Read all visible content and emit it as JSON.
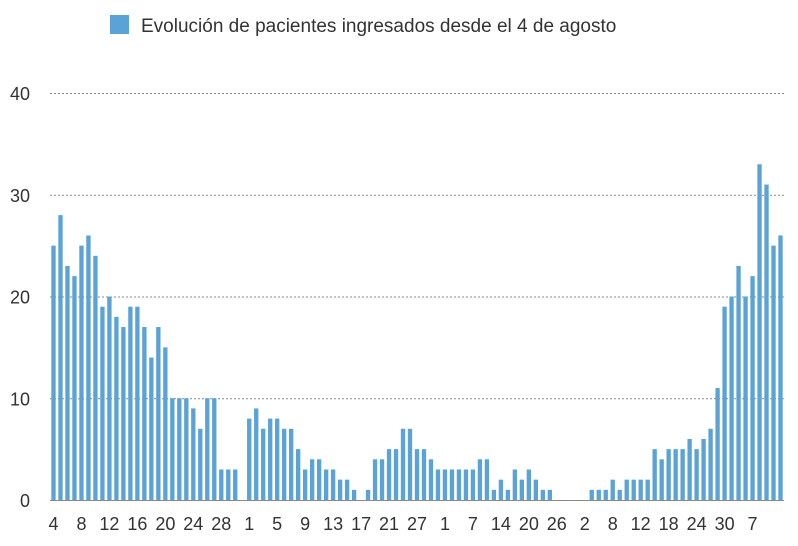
{
  "chart_data": {
    "type": "bar",
    "title": "",
    "xlabel": "",
    "ylabel": "",
    "ylim": [
      0,
      40
    ],
    "yticks": [
      0,
      10,
      20,
      30,
      40
    ],
    "grid": true,
    "legend_position": "top",
    "series": [
      {
        "name": "Evolución de pacientes ingresados desde el 4 de agosto",
        "color": "#5ba3d6",
        "values": [
          25,
          28,
          23,
          22,
          25,
          26,
          24,
          19,
          20,
          18,
          17,
          19,
          19,
          17,
          14,
          17,
          15,
          10,
          10,
          10,
          9,
          7,
          10,
          10,
          3,
          3,
          3,
          0,
          8,
          9,
          7,
          8,
          8,
          7,
          7,
          5,
          3,
          4,
          4,
          3,
          3,
          2,
          2,
          1,
          0,
          1,
          4,
          4,
          5,
          5,
          7,
          7,
          5,
          5,
          4,
          3,
          3,
          3,
          3,
          3,
          3,
          4,
          4,
          1,
          2,
          1,
          3,
          2,
          3,
          2,
          1,
          1,
          0,
          0,
          0,
          0,
          0,
          1,
          1,
          1,
          2,
          1,
          2,
          2,
          2,
          2,
          5,
          4,
          5,
          5,
          5,
          6,
          5,
          6,
          7,
          11,
          19,
          20,
          23,
          20,
          22,
          33,
          31,
          25,
          26
        ]
      }
    ],
    "x_tick_labels": [
      {
        "index": 0,
        "label": "4"
      },
      {
        "index": 4,
        "label": "8"
      },
      {
        "index": 8,
        "label": "12"
      },
      {
        "index": 12,
        "label": "16"
      },
      {
        "index": 16,
        "label": "20"
      },
      {
        "index": 20,
        "label": "24"
      },
      {
        "index": 24,
        "label": "28"
      },
      {
        "index": 28,
        "label": "1"
      },
      {
        "index": 32,
        "label": "5"
      },
      {
        "index": 36,
        "label": "9"
      },
      {
        "index": 40,
        "label": "13"
      },
      {
        "index": 44,
        "label": "17"
      },
      {
        "index": 48,
        "label": "21"
      },
      {
        "index": 52,
        "label": "27"
      },
      {
        "index": 56,
        "label": "1"
      },
      {
        "index": 60,
        "label": "7"
      },
      {
        "index": 64,
        "label": "14"
      },
      {
        "index": 68,
        "label": "20"
      },
      {
        "index": 72,
        "label": "26"
      },
      {
        "index": 76,
        "label": "2"
      },
      {
        "index": 80,
        "label": "8"
      },
      {
        "index": 84,
        "label": "12"
      },
      {
        "index": 88,
        "label": "18"
      },
      {
        "index": 92,
        "label": "24"
      },
      {
        "index": 96,
        "label": "30"
      },
      {
        "index": 100,
        "label": "7"
      }
    ]
  }
}
